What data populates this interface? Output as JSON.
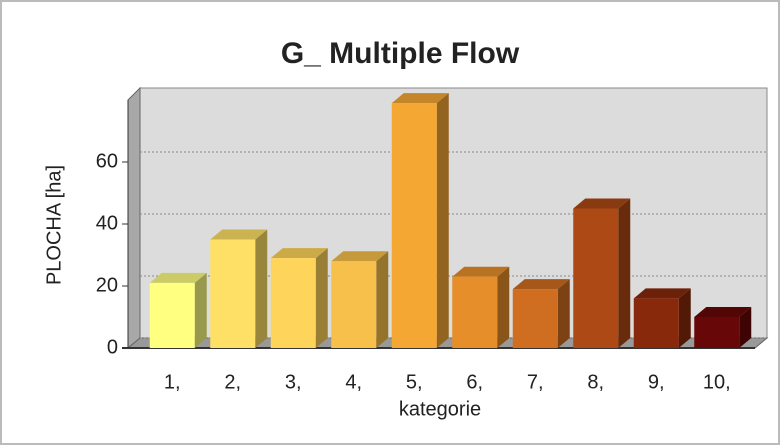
{
  "chart_data": {
    "type": "bar",
    "title": "G_ Multiple Flow",
    "x_label": "kategorie",
    "y_label": "PLOCHA [ha]",
    "categories": [
      "1,",
      "2,",
      "3,",
      "4,",
      "5,",
      "6,",
      "7,",
      "8,",
      "9,",
      "10,"
    ],
    "values": [
      21,
      35,
      29,
      28,
      79,
      23,
      19,
      45,
      16,
      10
    ],
    "colors": [
      "#ffff80",
      "#ffe066",
      "#ffd45a",
      "#f7c04a",
      "#f5a733",
      "#e68e29",
      "#cf6e20",
      "#ad4914",
      "#88290b",
      "#680707"
    ],
    "ylim": [
      0,
      80
    ],
    "yticks": [
      0,
      20,
      40,
      60
    ],
    "grid": true
  }
}
